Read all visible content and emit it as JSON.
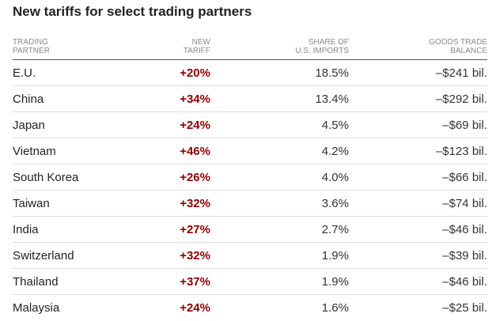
{
  "title": "New tariffs for select trading partners",
  "colors": {
    "tariff_text": "#8b0000",
    "header_text": "#8a8a8a",
    "row_divider": "#dcdcdc",
    "header_rule": "#555555"
  },
  "columns": {
    "partner": [
      "TRADING",
      "PARTNER"
    ],
    "tariff": [
      "NEW",
      "TARIFF"
    ],
    "share": [
      "SHARE OF",
      "U.S. IMPORTS"
    ],
    "balance": [
      "GOODS TRADE",
      "BALANCE"
    ]
  },
  "chart_data": {
    "type": "table",
    "title": "New tariffs for select trading partners",
    "columns": [
      "TRADING PARTNER",
      "NEW TARIFF",
      "SHARE OF U.S. IMPORTS",
      "GOODS TRADE BALANCE"
    ],
    "rows": [
      {
        "partner": "E.U.",
        "tariff": "+20%",
        "share": "18.5%",
        "balance": "–$241 bil."
      },
      {
        "partner": "China",
        "tariff": "+34%",
        "share": "13.4%",
        "balance": "–$292 bil."
      },
      {
        "partner": "Japan",
        "tariff": "+24%",
        "share": "4.5%",
        "balance": "–$69 bil."
      },
      {
        "partner": "Vietnam",
        "tariff": "+46%",
        "share": "4.2%",
        "balance": "–$123 bil."
      },
      {
        "partner": "South Korea",
        "tariff": "+26%",
        "share": "4.0%",
        "balance": "–$66 bil."
      },
      {
        "partner": "Taiwan",
        "tariff": "+32%",
        "share": "3.6%",
        "balance": "–$74 bil."
      },
      {
        "partner": "India",
        "tariff": "+27%",
        "share": "2.7%",
        "balance": "–$46 bil."
      },
      {
        "partner": "Switzerland",
        "tariff": "+32%",
        "share": "1.9%",
        "balance": "–$39 bil."
      },
      {
        "partner": "Thailand",
        "tariff": "+37%",
        "share": "1.9%",
        "balance": "–$46 bil."
      },
      {
        "partner": "Malaysia",
        "tariff": "+24%",
        "share": "1.6%",
        "balance": "–$25 bil."
      }
    ]
  }
}
